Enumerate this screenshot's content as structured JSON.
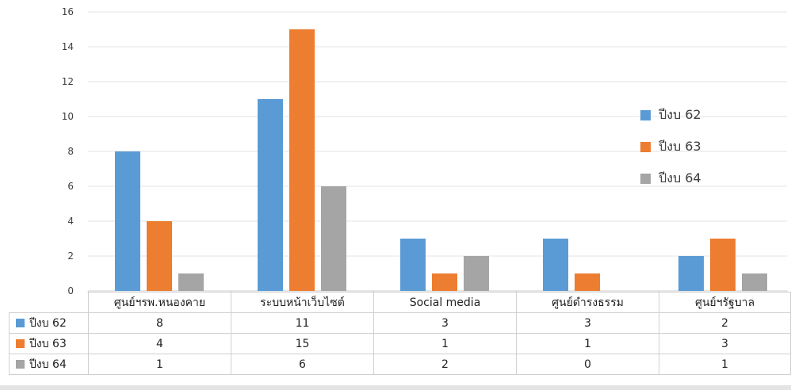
{
  "chart_data": {
    "type": "bar",
    "categories": [
      "ศูนย์ฯรพ.หนองคาย",
      "ระบบหน้าเว็บไซต์",
      "Social media",
      "ศูนย์ดำรงธรรม",
      "ศูนย์ฯรัฐบาล"
    ],
    "series": [
      {
        "name": "ปีงบ 62",
        "color": "#5B9BD5",
        "values": [
          8,
          11,
          3,
          3,
          2
        ]
      },
      {
        "name": "ปีงบ 63",
        "color": "#ED7D31",
        "values": [
          4,
          15,
          1,
          1,
          3
        ]
      },
      {
        "name": "ปีงบ 64",
        "color": "#A5A5A5",
        "values": [
          1,
          6,
          2,
          0,
          1
        ]
      }
    ],
    "ylim": [
      0,
      16
    ],
    "yticks": [
      0,
      2,
      4,
      6,
      8,
      10,
      12,
      14,
      16
    ],
    "grid": true,
    "legend": "right",
    "data_table": true
  }
}
